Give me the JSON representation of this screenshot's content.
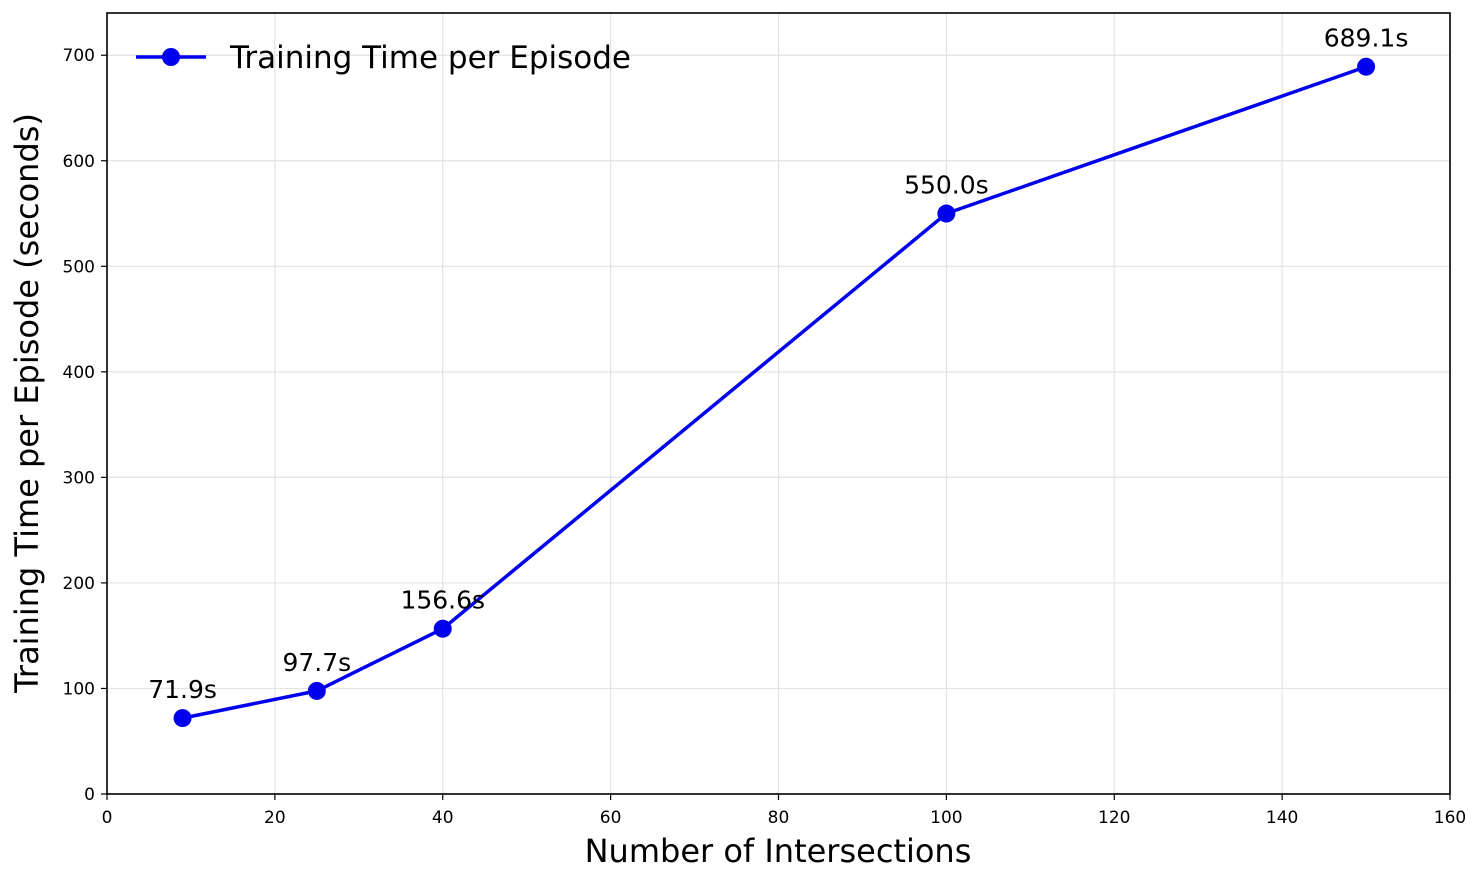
{
  "chart_data": {
    "type": "line",
    "title": "",
    "xlabel": "Number of Intersections",
    "ylabel": "Training Time per Episode (seconds)",
    "xlim": [
      0,
      160
    ],
    "ylim": [
      0,
      740
    ],
    "x_ticks": [
      0,
      20,
      40,
      60,
      80,
      100,
      120,
      140,
      160
    ],
    "y_ticks": [
      0,
      100,
      200,
      300,
      400,
      500,
      600,
      700
    ],
    "grid": true,
    "legend_position": "top-left",
    "series": [
      {
        "name": "Training Time per Episode",
        "color": "#0000ee",
        "marker": "circle",
        "x": [
          9,
          25,
          40,
          100,
          150
        ],
        "y": [
          71.9,
          97.7,
          156.6,
          550.0,
          689.1
        ],
        "data_labels": [
          "71.9s",
          "97.7s",
          "156.6s",
          "550.0s",
          "689.1s"
        ]
      }
    ]
  }
}
